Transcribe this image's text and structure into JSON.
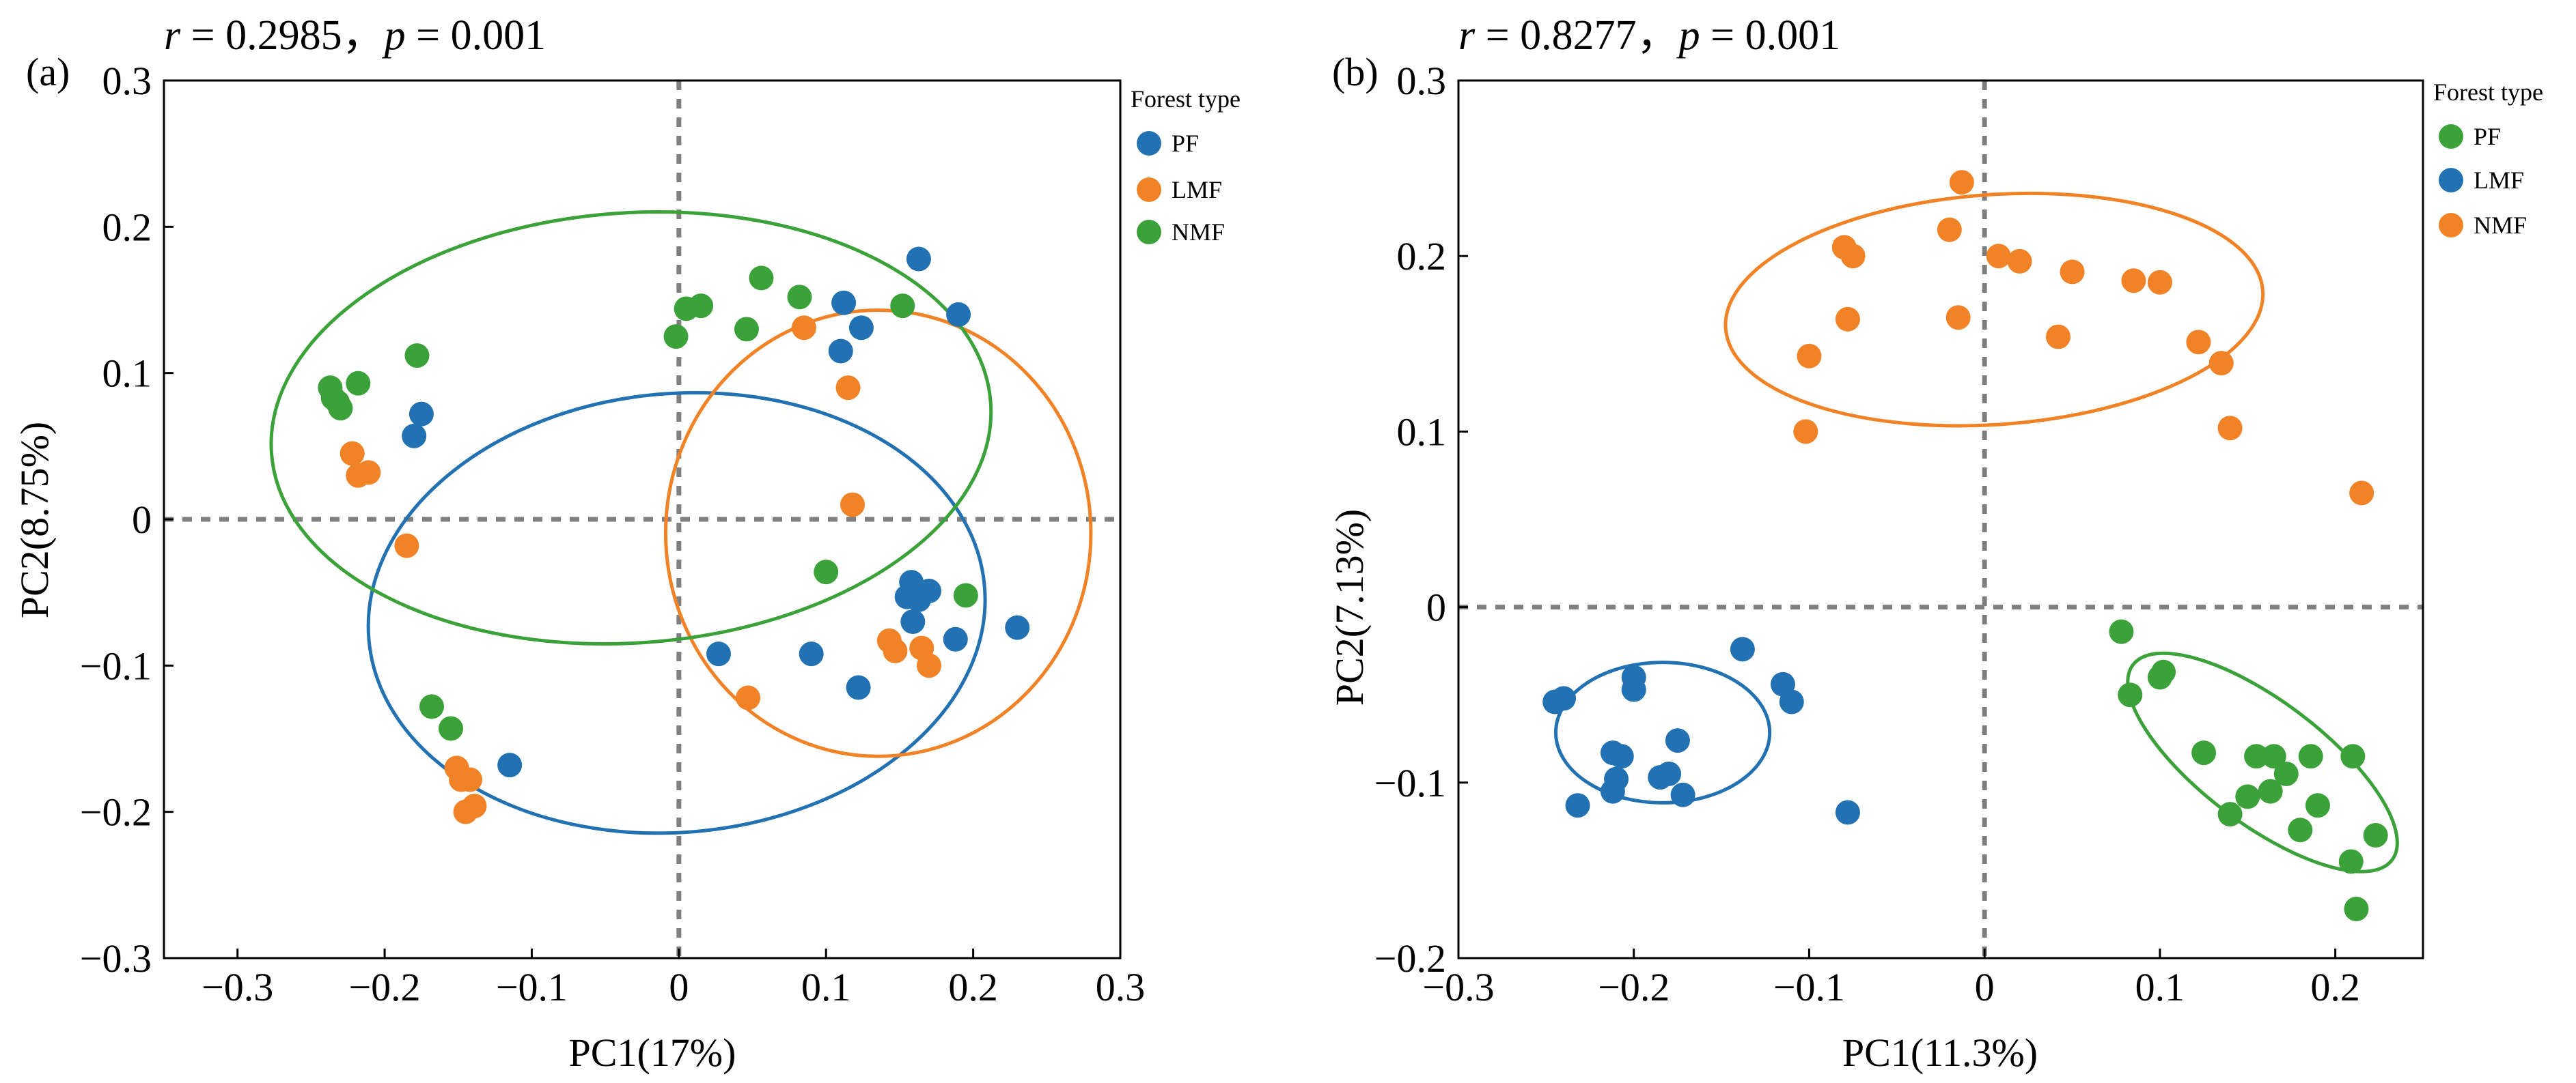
{
  "colors": {
    "blue": "#2271b3",
    "orange": "#f28226",
    "green": "#3ba23a",
    "axis": "#000000",
    "zero": "#7f7f7f"
  },
  "chart_data": [
    {
      "type": "scatter",
      "panel_label": "(a)",
      "title_r_label": "r",
      "title_r_text": " = 0.2985，",
      "title_p_label": "p",
      "title_p_text": " = 0.001",
      "xlabel": "PC1(17%)",
      "ylabel": "PC2(8.75%)",
      "xlim": [
        -0.35,
        0.3
      ],
      "ylim": [
        -0.3,
        0.3
      ],
      "xticks": [
        -0.3,
        -0.2,
        -0.1,
        0,
        0.1,
        0.2,
        0.3
      ],
      "xtick_labels": [
        "−0.3",
        "−0.2",
        "−0.1",
        "0",
        "0.1",
        "0.2",
        "0.3"
      ],
      "yticks": [
        -0.3,
        -0.2,
        -0.1,
        0,
        0.1,
        0.2,
        0.3
      ],
      "ytick_labels": [
        "−0.3",
        "−0.2",
        "−0.1",
        "0",
        "0.1",
        "0.2",
        "0.3"
      ],
      "legend": {
        "title": "Forest type",
        "placement": "outside-right"
      },
      "series": [
        {
          "name": "PF",
          "color": "#2271b3",
          "ellipse": {
            "cx": -0.0015,
            "cy": -0.064,
            "rx": 0.21,
            "ry": 0.15,
            "angle": -5
          },
          "points": [
            [
              -0.18,
              0.057
            ],
            [
              -0.175,
              0.072
            ],
            [
              0.163,
              0.178
            ],
            [
              0.19,
              0.14
            ],
            [
              0.112,
              0.148
            ],
            [
              0.124,
              0.131
            ],
            [
              0.11,
              0.115
            ],
            [
              0.155,
              -0.053
            ],
            [
              0.158,
              -0.043
            ],
            [
              0.163,
              -0.055
            ],
            [
              0.17,
              -0.049
            ],
            [
              0.159,
              -0.07
            ],
            [
              0.188,
              -0.082
            ],
            [
              0.23,
              -0.074
            ],
            [
              0.027,
              -0.092
            ],
            [
              0.09,
              -0.092
            ],
            [
              0.122,
              -0.115
            ],
            [
              -0.115,
              -0.168
            ]
          ]
        },
        {
          "name": "LMF",
          "color": "#f28226",
          "ellipse": {
            "cx": 0.1355,
            "cy": -0.0095,
            "rx": 0.1445,
            "ry": 0.1525,
            "angle": 0
          },
          "points": [
            [
              -0.222,
              0.045
            ],
            [
              -0.218,
              0.03
            ],
            [
              -0.211,
              0.032
            ],
            [
              -0.185,
              -0.018
            ],
            [
              0.085,
              0.131
            ],
            [
              0.115,
              0.09
            ],
            [
              0.118,
              0.01
            ],
            [
              0.143,
              -0.083
            ],
            [
              0.147,
              -0.09
            ],
            [
              0.165,
              -0.088
            ],
            [
              0.17,
              -0.1
            ],
            [
              0.047,
              -0.122
            ],
            [
              -0.151,
              -0.17
            ],
            [
              -0.142,
              -0.178
            ],
            [
              -0.148,
              -0.178
            ],
            [
              -0.139,
              -0.196
            ],
            [
              -0.145,
              -0.2
            ]
          ]
        },
        {
          "name": "NMF",
          "color": "#3ba23a",
          "ellipse": {
            "cx": -0.0325,
            "cy": 0.0625,
            "rx": 0.245,
            "ry": 0.147,
            "angle": -4
          },
          "points": [
            [
              -0.237,
              0.09
            ],
            [
              -0.235,
              0.083
            ],
            [
              -0.232,
              0.08
            ],
            [
              -0.23,
              0.076
            ],
            [
              -0.218,
              0.093
            ],
            [
              -0.178,
              0.112
            ],
            [
              0.005,
              0.144
            ],
            [
              0.015,
              0.146
            ],
            [
              0.056,
              0.165
            ],
            [
              0.082,
              0.152
            ],
            [
              0.152,
              0.146
            ],
            [
              -0.002,
              0.125
            ],
            [
              0.046,
              0.13
            ],
            [
              0.1,
              -0.036
            ],
            [
              0.195,
              -0.052
            ],
            [
              -0.168,
              -0.128
            ],
            [
              -0.155,
              -0.143
            ]
          ]
        }
      ]
    },
    {
      "type": "scatter",
      "panel_label": "(b)",
      "title_r_label": "r",
      "title_r_text": " = 0.8277，",
      "title_p_label": "p",
      "title_p_text": " = 0.001",
      "xlabel": "PC1(11.3%)",
      "ylabel": "PC2(7.13%)",
      "xlim": [
        -0.3,
        0.25
      ],
      "ylim": [
        -0.2,
        0.3
      ],
      "xticks": [
        -0.3,
        -0.2,
        -0.1,
        0,
        0.1,
        0.2
      ],
      "xtick_labels": [
        "−0.3",
        "−0.2",
        "−0.1",
        "0",
        "0.1",
        "0.2"
      ],
      "yticks": [
        -0.2,
        -0.1,
        0,
        0.1,
        0.2,
        0.3
      ],
      "ytick_labels": [
        "−0.2",
        "−0.1",
        "0",
        "0.1",
        "0.2",
        "0.3"
      ],
      "legend": {
        "title": "Forest type",
        "placement": "outside-right"
      },
      "series": [
        {
          "name": "PF",
          "color": "#3ba23a",
          "ellipse": {
            "cx": 0.1585,
            "cy": -0.0885,
            "rx": 0.0925,
            "ry": 0.035,
            "angle": 37
          },
          "points": [
            [
              0.078,
              -0.014
            ],
            [
              0.083,
              -0.05
            ],
            [
              0.1,
              -0.04
            ],
            [
              0.102,
              -0.037
            ],
            [
              0.125,
              -0.083
            ],
            [
              0.14,
              -0.118
            ],
            [
              0.15,
              -0.108
            ],
            [
              0.155,
              -0.085
            ],
            [
              0.165,
              -0.085
            ],
            [
              0.163,
              -0.105
            ],
            [
              0.172,
              -0.095
            ],
            [
              0.18,
              -0.127
            ],
            [
              0.186,
              -0.085
            ],
            [
              0.19,
              -0.113
            ],
            [
              0.209,
              -0.145
            ],
            [
              0.21,
              -0.085
            ],
            [
              0.212,
              -0.172
            ],
            [
              0.223,
              -0.13
            ]
          ]
        },
        {
          "name": "LMF",
          "color": "#2271b3",
          "ellipse": {
            "cx": -0.1835,
            "cy": -0.0715,
            "rx": 0.061,
            "ry": 0.04,
            "angle": 0
          },
          "points": [
            [
              -0.24,
              -0.052
            ],
            [
              -0.245,
              -0.054
            ],
            [
              -0.232,
              -0.113
            ],
            [
              -0.212,
              -0.083
            ],
            [
              -0.207,
              -0.085
            ],
            [
              -0.21,
              -0.098
            ],
            [
              -0.212,
              -0.105
            ],
            [
              -0.2,
              -0.04
            ],
            [
              -0.2,
              -0.047
            ],
            [
              -0.185,
              -0.097
            ],
            [
              -0.18,
              -0.095
            ],
            [
              -0.175,
              -0.076
            ],
            [
              -0.172,
              -0.107
            ],
            [
              -0.138,
              -0.024
            ],
            [
              -0.115,
              -0.044
            ],
            [
              -0.11,
              -0.054
            ],
            [
              -0.078,
              -0.117
            ]
          ]
        },
        {
          "name": "NMF",
          "color": "#f28226",
          "ellipse": {
            "cx": 0.0055,
            "cy": 0.1695,
            "rx": 0.1535,
            "ry": 0.0655,
            "angle": -4
          },
          "points": [
            [
              -0.013,
              0.242
            ],
            [
              -0.08,
              0.205
            ],
            [
              -0.075,
              0.2
            ],
            [
              -0.02,
              0.215
            ],
            [
              0.008,
              0.2
            ],
            [
              0.02,
              0.197
            ],
            [
              0.05,
              0.191
            ],
            [
              0.085,
              0.186
            ],
            [
              0.1,
              0.185
            ],
            [
              -0.078,
              0.164
            ],
            [
              -0.015,
              0.165
            ],
            [
              0.042,
              0.154
            ],
            [
              0.122,
              0.151
            ],
            [
              0.135,
              0.139
            ],
            [
              -0.1,
              0.143
            ],
            [
              -0.102,
              0.1
            ],
            [
              0.14,
              0.102
            ],
            [
              0.215,
              0.065
            ]
          ]
        }
      ]
    }
  ]
}
